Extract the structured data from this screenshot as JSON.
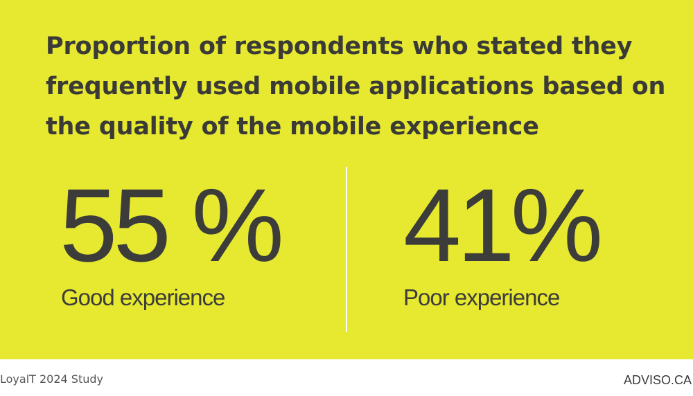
{
  "headline": {
    "line1": "Proportion of respondents who stated they",
    "line2_bold": "frequently",
    "line2_rest": " used mobile applications based on",
    "line3": "the quality of the mobile experience"
  },
  "stats": [
    {
      "value": "55 %",
      "label": "Good experience",
      "percent": 55
    },
    {
      "value": "41%",
      "label": "Poor experience",
      "percent": 41
    }
  ],
  "footer": {
    "source": "LoyalT 2024 Study",
    "brand": "ADVISO.CA"
  },
  "colors": {
    "background": "#e7e830",
    "text": "#3c3c3a",
    "divider": "#ffffff"
  }
}
